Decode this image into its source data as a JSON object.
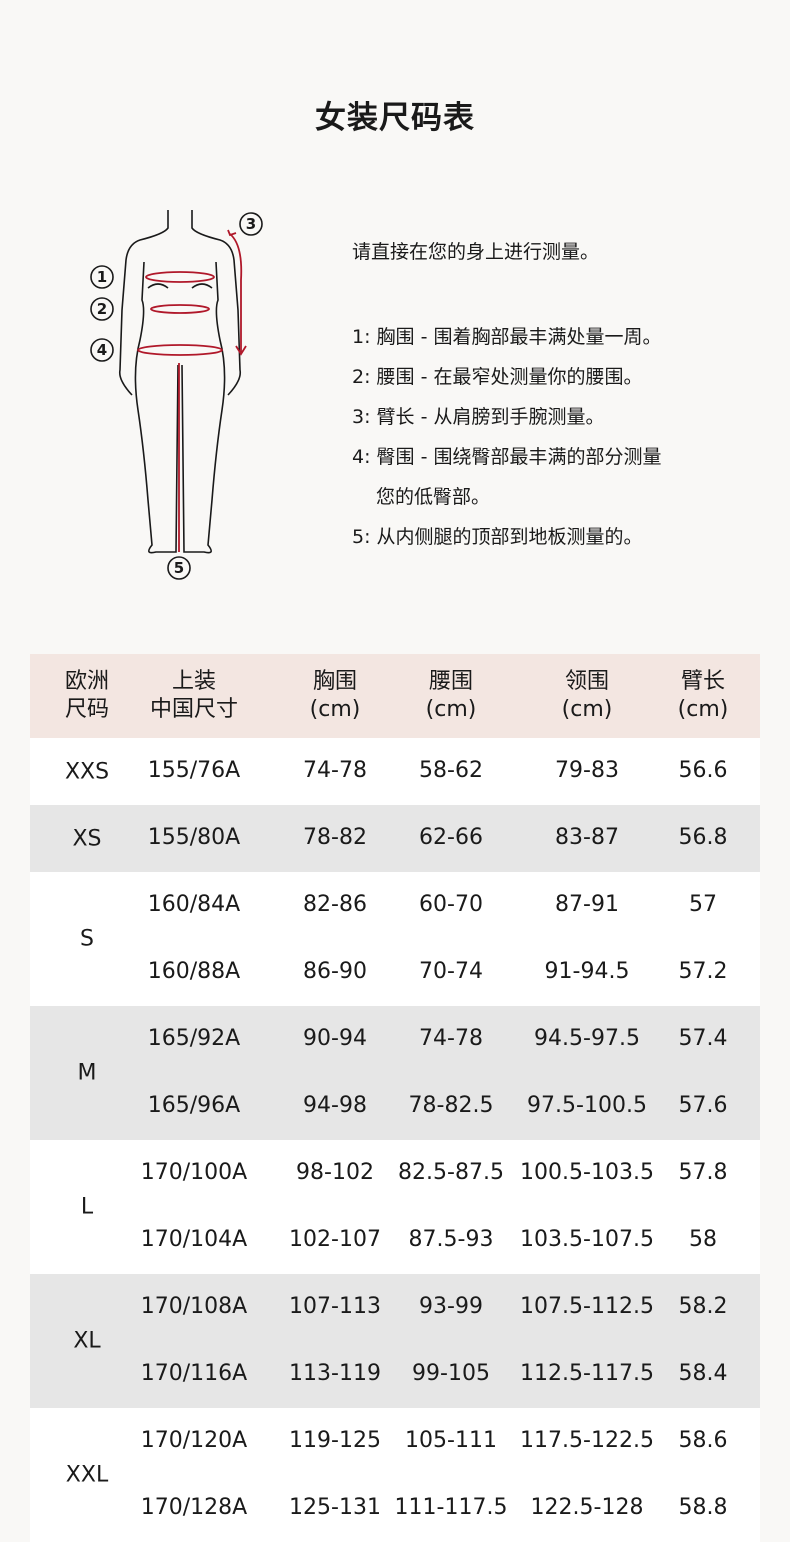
{
  "title": "女装尺码表",
  "intro": "请直接在您的身上进行测量。",
  "instructions": [
    "1: 胸围 - 围着胸部最丰满处量一周。",
    "2: 腰围 - 在最窄处测量你的腰围。",
    "3: 臂长 - 从肩膀到手腕测量。",
    "4: 臀围 - 围绕臀部最丰满的部分测量",
    "您的低臀部。",
    "5: 从内侧腿的顶部到地板测量的。"
  ],
  "figure_labels": [
    "1",
    "2",
    "3",
    "4",
    "5"
  ],
  "colors": {
    "header_bg": "#f3e6e1",
    "alt_row": "#e6e6e6",
    "measure_line": "#b0182a"
  },
  "table": {
    "headers": [
      [
        "欧洲",
        "尺码"
      ],
      [
        "上装",
        "中国尺寸"
      ],
      [
        "胸围",
        "(cm)"
      ],
      [
        "腰围",
        "(cm)"
      ],
      [
        "领围",
        "(cm)"
      ],
      [
        "臂长",
        "(cm)"
      ]
    ],
    "groups": [
      {
        "eu": "XXS",
        "rows": [
          [
            "155/76A",
            "74-78",
            "58-62",
            "79-83",
            "56.6"
          ]
        ]
      },
      {
        "eu": "XS",
        "rows": [
          [
            "155/80A",
            "78-82",
            "62-66",
            "83-87",
            "56.8"
          ]
        ]
      },
      {
        "eu": "S",
        "rows": [
          [
            "160/84A",
            "82-86",
            "60-70",
            "87-91",
            "57"
          ],
          [
            "160/88A",
            "86-90",
            "70-74",
            "91-94.5",
            "57.2"
          ]
        ]
      },
      {
        "eu": "M",
        "rows": [
          [
            "165/92A",
            "90-94",
            "74-78",
            "94.5-97.5",
            "57.4"
          ],
          [
            "165/96A",
            "94-98",
            "78-82.5",
            "97.5-100.5",
            "57.6"
          ]
        ]
      },
      {
        "eu": "L",
        "rows": [
          [
            "170/100A",
            "98-102",
            "82.5-87.5",
            "100.5-103.5",
            "57.8"
          ],
          [
            "170/104A",
            "102-107",
            "87.5-93",
            "103.5-107.5",
            "58"
          ]
        ]
      },
      {
        "eu": "XL",
        "rows": [
          [
            "170/108A",
            "107-113",
            "93-99",
            "107.5-112.5",
            "58.2"
          ],
          [
            "170/116A",
            "113-119",
            "99-105",
            "112.5-117.5",
            "58.4"
          ]
        ]
      },
      {
        "eu": "XXL",
        "rows": [
          [
            "170/120A",
            "119-125",
            "105-111",
            "117.5-122.5",
            "58.6"
          ],
          [
            "170/128A",
            "125-131",
            "111-117.5",
            "122.5-128",
            "58.8"
          ]
        ]
      }
    ]
  }
}
